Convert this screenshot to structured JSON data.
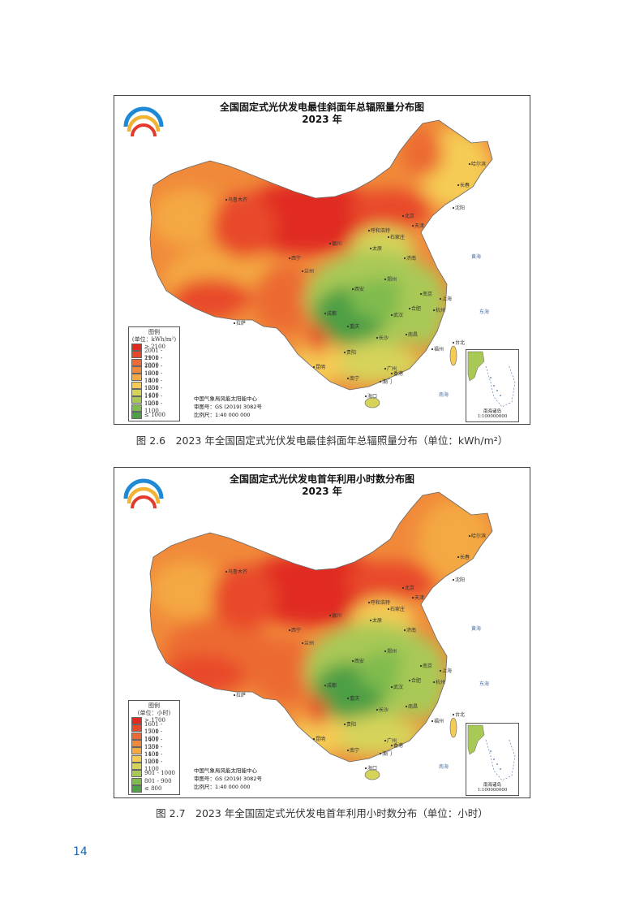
{
  "page_number": "14",
  "maps": [
    {
      "title": "全国固定式光伏发电最佳斜面年总辐照量分布图",
      "year": "2023 年",
      "caption": "图 2.6　2023 年全国固定式光伏发电最佳斜面年总辐照量分布（单位：kWh/m²）",
      "legend": {
        "title": "图例",
        "unit": "(单位：kWh/m²)",
        "items": [
          {
            "label": "> 2100",
            "color": "#e02a20"
          },
          {
            "label": "2001 - 2100",
            "color": "#e8492b"
          },
          {
            "label": "1901 - 2000",
            "color": "#ec6a33"
          },
          {
            "label": "1801 - 1900",
            "color": "#f08a3a"
          },
          {
            "label": "1601 - 1800",
            "color": "#f4a943"
          },
          {
            "label": "1401 - 1600",
            "color": "#f5cb54"
          },
          {
            "label": "1251 - 1400",
            "color": "#d6d35a"
          },
          {
            "label": "1101 - 1250",
            "color": "#a9c956"
          },
          {
            "label": "1001 - 1100",
            "color": "#7fbb4e"
          },
          {
            "label": "≤ 1000",
            "color": "#4e9f45"
          }
        ]
      },
      "credits": {
        "agency": "中国气象局风能太阳能中心",
        "approval": "审图号：GS (2019) 3082号",
        "scale": "比例尺：1:40 000 000"
      },
      "inset_label": "南海诸岛",
      "inset_scale": "1:100000000",
      "city_labels": [
        "乌鲁木齐",
        "拉萨",
        "西宁",
        "兰州",
        "银川",
        "呼和浩特",
        "北京",
        "天津",
        "石家庄",
        "太原",
        "济南",
        "郑州",
        "西安",
        "成都",
        "重庆",
        "贵阳",
        "昆明",
        "南宁",
        "海口",
        "香港",
        "澳门",
        "广州",
        "长沙",
        "武汉",
        "南昌",
        "福州",
        "台北",
        "杭州",
        "上海",
        "南京",
        "合肥",
        "沈阳",
        "长春",
        "哈尔滨"
      ],
      "sea_labels": [
        "黄海",
        "东海",
        "南海"
      ]
    },
    {
      "title": "全国固定式光伏发电首年利用小时数分布图",
      "year": "2023 年",
      "caption": "图 2.7　2023 年全国固定式光伏发电首年利用小时数分布（单位：小时）",
      "legend": {
        "title": "图例",
        "unit": "(单位：小时)",
        "items": [
          {
            "label": "> 1700",
            "color": "#e02a20"
          },
          {
            "label": "1601 - 1700",
            "color": "#e8492b"
          },
          {
            "label": "1501 - 1600",
            "color": "#ec6a33"
          },
          {
            "label": "1401 - 1500",
            "color": "#f08a3a"
          },
          {
            "label": "1251 - 1400",
            "color": "#f4a943"
          },
          {
            "label": "1101 - 1250",
            "color": "#f5cb54"
          },
          {
            "label": "1001 - 1100",
            "color": "#d6d35a"
          },
          {
            "label": "901 - 1000",
            "color": "#a9c956"
          },
          {
            "label": "801 - 900",
            "color": "#7fbb4e"
          },
          {
            "label": "≤ 800",
            "color": "#4e9f45"
          }
        ]
      },
      "credits": {
        "agency": "中国气象局风能太阳能中心",
        "approval": "审图号：GS (2019) 3082号",
        "scale": "比例尺：1:40 000 000"
      },
      "inset_label": "南海诸岛",
      "inset_scale": "1:100000000",
      "city_labels": [
        "乌鲁木齐",
        "拉萨",
        "西宁",
        "兰州",
        "银川",
        "呼和浩特",
        "北京",
        "天津",
        "石家庄",
        "太原",
        "济南",
        "郑州",
        "西安",
        "成都",
        "重庆",
        "贵阳",
        "昆明",
        "南宁",
        "海口",
        "香港",
        "澳门",
        "广州",
        "长沙",
        "武汉",
        "南昌",
        "福州",
        "台北",
        "杭州",
        "上海",
        "南京",
        "合肥",
        "沈阳",
        "长春",
        "哈尔滨"
      ],
      "sea_labels": [
        "黄海",
        "东海",
        "南海"
      ]
    }
  ]
}
